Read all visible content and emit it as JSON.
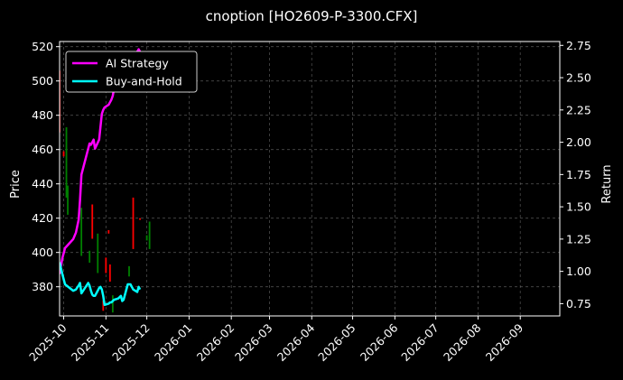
{
  "chart_data": {
    "type": "line",
    "title": "cnoption [HO2609-P-3300.CFX]",
    "xlabel": "",
    "ylabel_left": "Price",
    "ylabel_right": "Return",
    "grid": true,
    "legend_position": "top-left",
    "background": "#000000",
    "x_range": [
      "2025-09-28",
      "2026-09-30"
    ],
    "ylim_left": [
      363,
      523
    ],
    "ylim_right": [
      0.655,
      2.78
    ],
    "x_tick_labels": [
      "2025-10",
      "2025-11",
      "2025-12",
      "2026-01",
      "2026-02",
      "2026-03",
      "2026-04",
      "2026-05",
      "2026-06",
      "2026-07",
      "2026-08",
      "2026-09"
    ],
    "x_tick_dates": [
      "2025-10-01",
      "2025-11-01",
      "2025-12-01",
      "2026-01-01",
      "2026-02-01",
      "2026-03-01",
      "2026-04-01",
      "2026-05-01",
      "2026-06-01",
      "2026-07-01",
      "2026-08-01",
      "2026-09-01"
    ],
    "y_left_ticks": [
      380,
      400,
      420,
      440,
      460,
      480,
      500,
      520
    ],
    "y_right_ticks": [
      0.75,
      1.0,
      1.25,
      1.5,
      1.75,
      2.0,
      2.25,
      2.5,
      2.75
    ],
    "series": [
      {
        "name": "AI Strategy",
        "color": "#ff00ff",
        "axis": "right",
        "x": [
          "2025-09-28",
          "2025-09-30",
          "2025-10-02",
          "2025-10-08",
          "2025-10-10",
          "2025-10-12",
          "2025-10-13",
          "2025-10-14",
          "2025-10-19",
          "2025-10-20",
          "2025-10-21",
          "2025-10-22",
          "2025-10-23",
          "2025-10-24",
          "2025-10-27",
          "2025-10-28",
          "2025-10-29",
          "2025-10-30",
          "2025-10-31",
          "2025-11-03",
          "2025-11-04",
          "2025-11-05",
          "2025-11-06",
          "2025-11-07",
          "2025-11-10",
          "2025-11-11",
          "2025-11-12",
          "2025-11-13",
          "2025-11-14",
          "2025-11-17",
          "2025-11-18",
          "2025-11-19",
          "2025-11-20",
          "2025-11-21",
          "2025-11-24",
          "2025-11-25",
          "2025-11-26"
        ],
        "y": [
          0.98,
          1.1,
          1.18,
          1.25,
          1.3,
          1.4,
          1.55,
          1.75,
          1.95,
          1.99,
          1.98,
          2.0,
          2.02,
          1.95,
          2.02,
          2.12,
          2.22,
          2.25,
          2.27,
          2.29,
          2.31,
          2.33,
          2.36,
          2.42,
          2.49,
          2.55,
          2.5,
          2.48,
          2.5,
          2.58,
          2.62,
          2.68,
          2.63,
          2.66,
          2.7,
          2.72,
          2.7
        ]
      },
      {
        "name": "Buy-and-Hold",
        "color": "#00ffff",
        "axis": "right",
        "x": [
          "2025-09-28",
          "2025-09-30",
          "2025-10-02",
          "2025-10-08",
          "2025-10-10",
          "2025-10-12",
          "2025-10-13",
          "2025-10-14",
          "2025-10-19",
          "2025-10-20",
          "2025-10-21",
          "2025-10-22",
          "2025-10-23",
          "2025-10-24",
          "2025-10-27",
          "2025-10-28",
          "2025-10-29",
          "2025-10-30",
          "2025-10-31",
          "2025-11-03",
          "2025-11-04",
          "2025-11-05",
          "2025-11-06",
          "2025-11-07",
          "2025-11-10",
          "2025-11-11",
          "2025-11-12",
          "2025-11-13",
          "2025-11-14",
          "2025-11-17",
          "2025-11-18",
          "2025-11-19",
          "2025-11-20",
          "2025-11-21",
          "2025-11-24",
          "2025-11-25",
          "2025-11-26"
        ],
        "y": [
          1.07,
          0.98,
          0.9,
          0.85,
          0.86,
          0.89,
          0.91,
          0.83,
          0.91,
          0.89,
          0.85,
          0.82,
          0.81,
          0.81,
          0.87,
          0.88,
          0.86,
          0.81,
          0.74,
          0.75,
          0.76,
          0.76,
          0.77,
          0.78,
          0.79,
          0.8,
          0.81,
          0.77,
          0.78,
          0.9,
          0.9,
          0.9,
          0.88,
          0.86,
          0.84,
          0.88,
          0.86
        ]
      }
    ],
    "candles": [
      {
        "date": "2025-09-28",
        "low": 470,
        "high": 506,
        "color": "#ff0000"
      },
      {
        "date": "2025-10-01",
        "low": 456,
        "high": 459,
        "color": "#ff0000"
      },
      {
        "date": "2025-10-03",
        "low": 432,
        "high": 473,
        "color": "#008000"
      },
      {
        "date": "2025-10-04",
        "low": 422,
        "high": 439,
        "color": "#008000"
      },
      {
        "date": "2025-10-14",
        "low": 398,
        "high": 426,
        "color": "#008000"
      },
      {
        "date": "2025-10-20",
        "low": 394,
        "high": 401,
        "color": "#008000"
      },
      {
        "date": "2025-10-22",
        "low": 408,
        "high": 428,
        "color": "#ff0000"
      },
      {
        "date": "2025-10-26",
        "low": 388,
        "high": 411,
        "color": "#008000"
      },
      {
        "date": "2025-10-30",
        "low": 366,
        "high": 372,
        "color": "#ff0000"
      },
      {
        "date": "2025-11-01",
        "low": 388,
        "high": 397,
        "color": "#ff0000"
      },
      {
        "date": "2025-11-03",
        "low": 411,
        "high": 413,
        "color": "#ff0000"
      },
      {
        "date": "2025-11-04",
        "low": 383,
        "high": 393,
        "color": "#ff0000"
      },
      {
        "date": "2025-11-06",
        "low": 365,
        "high": 375,
        "color": "#008000"
      },
      {
        "date": "2025-11-18",
        "low": 386,
        "high": 392,
        "color": "#008000"
      },
      {
        "date": "2025-11-21",
        "low": 402,
        "high": 432,
        "color": "#ff0000"
      },
      {
        "date": "2025-11-26",
        "low": 419,
        "high": 420,
        "color": "#ff0000"
      },
      {
        "date": "2025-12-01",
        "low": 407,
        "high": 410,
        "color": "#008000"
      },
      {
        "date": "2025-12-03",
        "low": 402,
        "high": 418,
        "color": "#008000"
      }
    ]
  }
}
